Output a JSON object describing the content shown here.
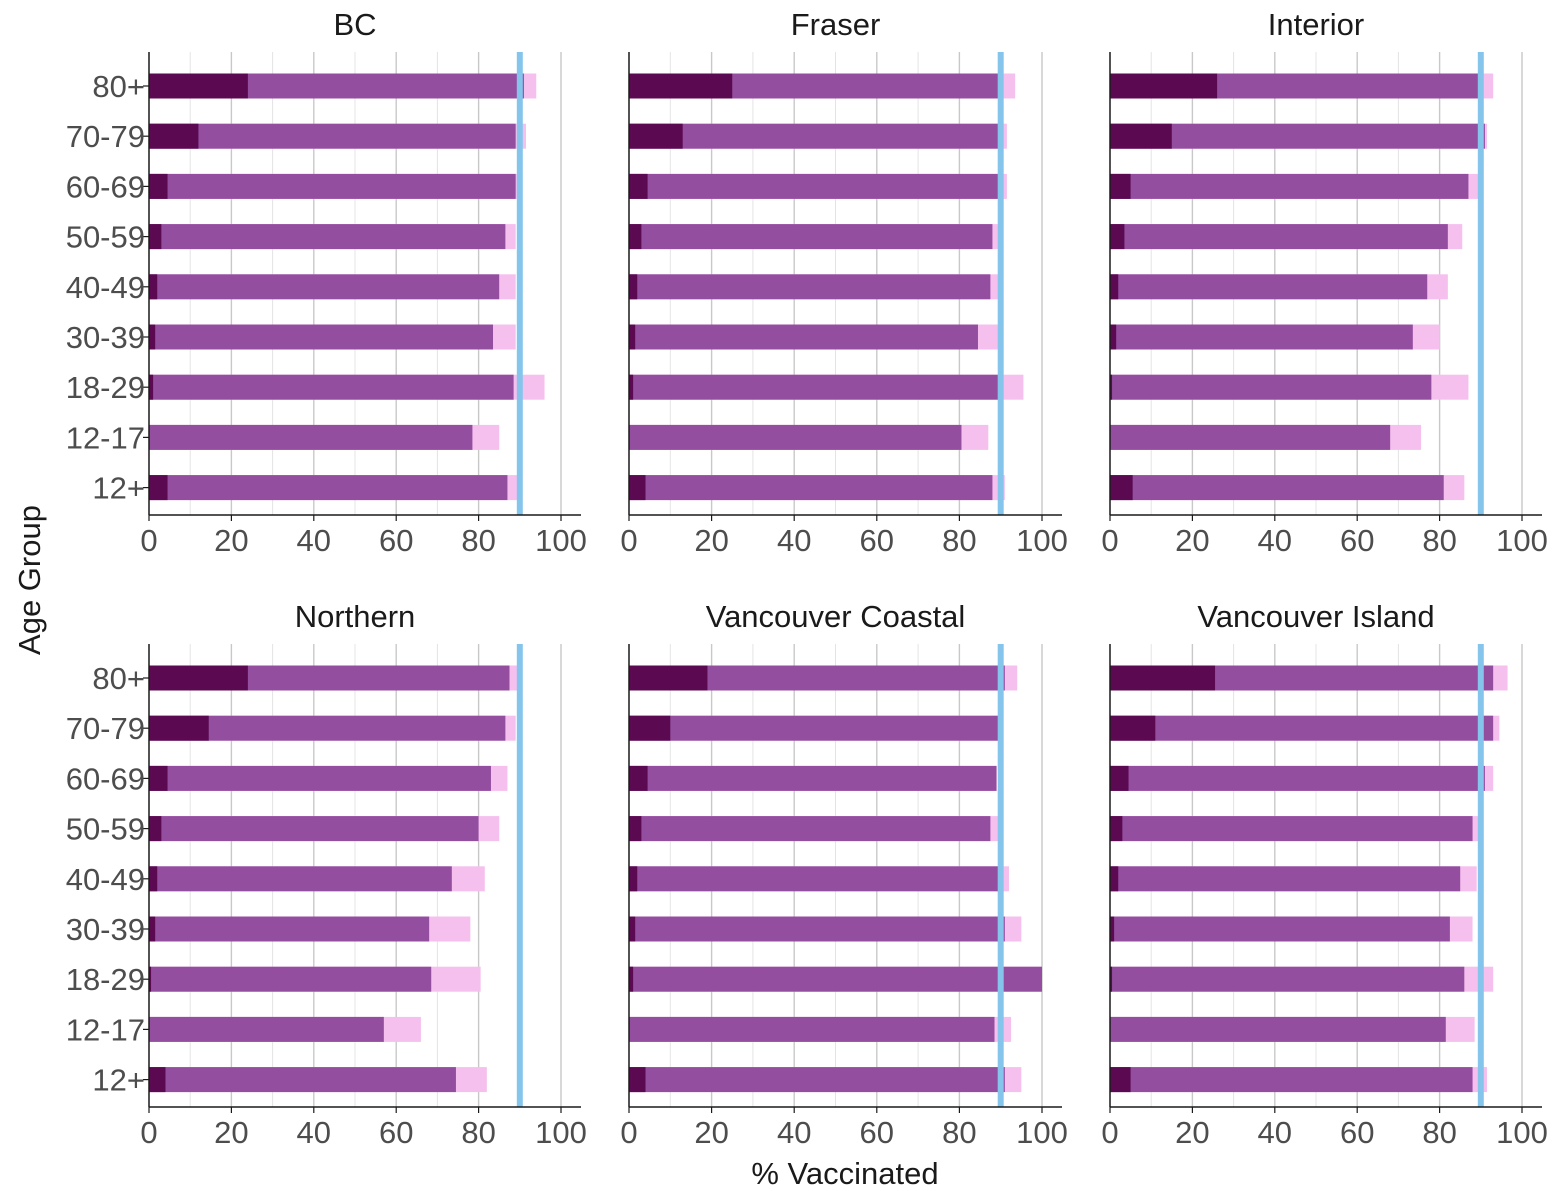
{
  "chart_data": {
    "type": "bar",
    "orientation": "horizontal",
    "stacked": true,
    "xlabel": "% Vaccinated",
    "ylabel": "Age Group",
    "xlim": [
      0,
      100
    ],
    "x_ticks": [
      "0",
      "20",
      "40",
      "60",
      "80",
      "100"
    ],
    "target_line": 90,
    "grid": "vertical",
    "categories": [
      "80+",
      "70-79",
      "60-69",
      "50-59",
      "40-49",
      "30-39",
      "18-29",
      "12-17",
      "12+"
    ],
    "colors": {
      "dark": "#5b0a52",
      "mid": "#944ea0",
      "light": "#f5c0ee",
      "target": "#85c5ec"
    },
    "panels": [
      {
        "title": "BC",
        "dark": [
          24,
          12,
          4.5,
          3,
          2,
          1.5,
          1,
          0,
          4.5
        ],
        "mid": [
          91,
          89,
          89,
          86.5,
          85,
          83.5,
          88.5,
          78.5,
          87
        ],
        "light": [
          94,
          91.5,
          89.5,
          89,
          89,
          89,
          96,
          85,
          89.5
        ]
      },
      {
        "title": "Fraser",
        "dark": [
          25,
          13,
          4.5,
          3,
          2,
          1.5,
          1,
          0,
          4
        ],
        "mid": [
          89.5,
          89.5,
          89.5,
          88,
          87.5,
          84.5,
          90,
          80.5,
          88
        ],
        "light": [
          93.5,
          91.5,
          91.5,
          89.5,
          89.5,
          89.5,
          95.5,
          87,
          91
        ]
      },
      {
        "title": "Interior",
        "dark": [
          26,
          15,
          5,
          3.5,
          2,
          1.5,
          0.5,
          0,
          5.5
        ],
        "mid": [
          90,
          91,
          87,
          82,
          77,
          73.5,
          78,
          68,
          81
        ],
        "light": [
          93,
          91.5,
          89.5,
          85.5,
          82,
          80,
          87,
          75.5,
          86
        ]
      },
      {
        "title": "Northern",
        "dark": [
          24,
          14.5,
          4.5,
          3,
          2,
          1.5,
          0.5,
          0,
          4
        ],
        "mid": [
          87.5,
          86.5,
          83,
          80,
          73.5,
          68,
          68.5,
          57,
          74.5
        ],
        "light": [
          90,
          89,
          87,
          85,
          81.5,
          78,
          80.5,
          66,
          82
        ]
      },
      {
        "title": "Vancouver Coastal",
        "dark": [
          19,
          10,
          4.5,
          3,
          2,
          1.5,
          1,
          0,
          4
        ],
        "mid": [
          91,
          89.5,
          89,
          87.5,
          89.5,
          91,
          100,
          88.5,
          91
        ],
        "light": [
          94,
          89.5,
          89,
          89.5,
          92,
          95,
          100,
          92.5,
          95
        ]
      },
      {
        "title": "Vancouver Island",
        "dark": [
          25.5,
          11,
          4.5,
          3,
          2,
          1,
          0.5,
          0,
          5
        ],
        "mid": [
          93,
          93,
          91,
          88,
          85,
          82.5,
          86,
          81.5,
          88
        ],
        "light": [
          96.5,
          94.5,
          93,
          90,
          89,
          88,
          93,
          88.5,
          91.5
        ]
      }
    ]
  }
}
